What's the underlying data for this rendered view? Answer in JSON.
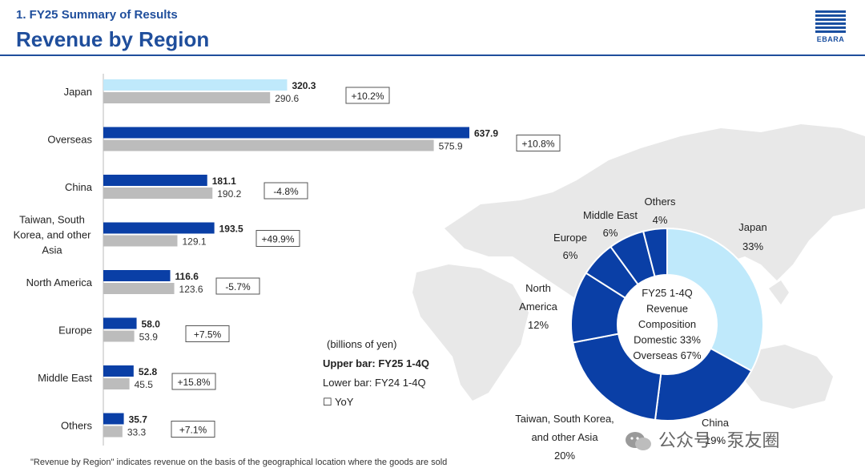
{
  "header": {
    "section_label": "1. FY25 Summary of Results",
    "title": "Revenue by Region",
    "logo_text": "EBARA"
  },
  "legend": {
    "unit": "(billions of yen)",
    "upper_bar": "Upper bar: FY25 1-4Q",
    "lower_bar": "Lower bar: FY24 1-4Q",
    "yoy": "☐ YoY"
  },
  "footnote": "\"Revenue by Region\" indicates revenue on the basis of the geographical location where the goods are sold",
  "watermark": "公众号 · 泵友圈",
  "colors": {
    "japan_bar": "#bfe9fb",
    "overseas_bar": "#0a3fa6",
    "prior_bar": "#bcbcbc",
    "title_blue": "#1f4e9c",
    "map_gray": "#e6e6e6"
  },
  "chart_data": [
    {
      "type": "bar",
      "orientation": "horizontal",
      "categories": [
        "Japan",
        "Overseas",
        "China",
        "Taiwan, South Korea, and other Asia",
        "North America",
        "Europe",
        "Middle East",
        "Others"
      ],
      "series": [
        {
          "name": "Upper bar: FY25 1-4Q",
          "values": [
            320.3,
            637.9,
            181.1,
            193.5,
            116.6,
            58.0,
            52.8,
            35.7
          ]
        },
        {
          "name": "Lower bar: FY24 1-4Q",
          "values": [
            290.6,
            575.9,
            190.2,
            129.1,
            123.6,
            53.9,
            45.5,
            33.3
          ]
        }
      ],
      "value_labels_upper": [
        "320.3",
        "637.9",
        "181.1",
        "193.5",
        "116.6",
        "58.0",
        "52.8",
        "35.7"
      ],
      "value_labels_lower": [
        "290.6",
        "575.9",
        "190.2",
        "129.1",
        "123.6",
        "53.9",
        "45.5",
        "33.3"
      ],
      "yoy": [
        "+10.2%",
        "+10.8%",
        "-4.8%",
        "+49.9%",
        "-5.7%",
        "+7.5%",
        "+15.8%",
        "+7.1%"
      ],
      "unit": "(billions of yen)",
      "title": "",
      "xlabel": "",
      "ylabel": ""
    },
    {
      "type": "pie",
      "donut": true,
      "center_text": [
        "FY25 1-4Q",
        "Revenue",
        "Composition",
        "Domestic 33%",
        "Overseas 67%"
      ],
      "slices": [
        {
          "label": "Japan",
          "value": 33,
          "label_text": "33%",
          "color": "#bfe9fb"
        },
        {
          "label": "China",
          "value": 19,
          "label_text": "19%",
          "color": "#0a3fa6"
        },
        {
          "label": "Taiwan, South Korea, and other Asia",
          "value": 20,
          "label_text": "20%",
          "color": "#0a3fa6"
        },
        {
          "label": "North America",
          "value": 12,
          "label_text": "12%",
          "color": "#0a3fa6"
        },
        {
          "label": "Europe",
          "value": 6,
          "label_text": "6%",
          "color": "#0a3fa6"
        },
        {
          "label": "Middle East",
          "value": 6,
          "label_text": "6%",
          "color": "#0a3fa6"
        },
        {
          "label": "Others",
          "value": 4,
          "label_text": "4%",
          "color": "#0a3fa6"
        }
      ]
    }
  ]
}
